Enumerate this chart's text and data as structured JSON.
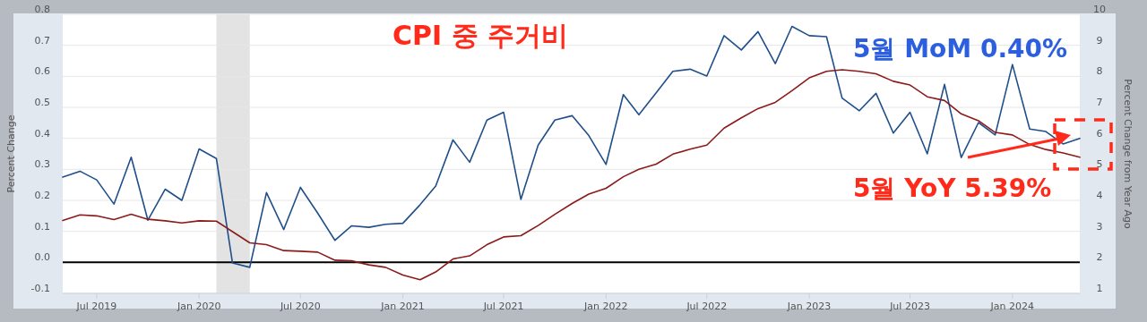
{
  "chart_data": {
    "type": "line",
    "title": "CPI 중 주거비",
    "ylabel": "Percent Change",
    "y2label": "Percent Change from Year Ago",
    "x": [
      "2019-05",
      "2019-06",
      "2019-07",
      "2019-08",
      "2019-09",
      "2019-10",
      "2019-11",
      "2019-12",
      "2020-01",
      "2020-02",
      "2020-03",
      "2020-04",
      "2020-05",
      "2020-06",
      "2020-07",
      "2020-08",
      "2020-09",
      "2020-10",
      "2020-11",
      "2020-12",
      "2021-01",
      "2021-02",
      "2021-03",
      "2021-04",
      "2021-05",
      "2021-06",
      "2021-07",
      "2021-08",
      "2021-09",
      "2021-10",
      "2021-11",
      "2021-12",
      "2022-01",
      "2022-02",
      "2022-03",
      "2022-04",
      "2022-05",
      "2022-06",
      "2022-07",
      "2022-08",
      "2022-09",
      "2022-10",
      "2022-11",
      "2022-12",
      "2023-01",
      "2023-02",
      "2023-03",
      "2023-04",
      "2023-05",
      "2023-06",
      "2023-07",
      "2023-08",
      "2023-09",
      "2023-10",
      "2023-11",
      "2023-12",
      "2024-01",
      "2024-02",
      "2024-03",
      "2024-04",
      "2024-05"
    ],
    "series": [
      {
        "color": "#1f4f8b",
        "values": [
          0.275,
          0.294,
          0.266,
          0.188,
          0.339,
          0.136,
          0.236,
          0.2,
          0.366,
          0.335,
          -0.002,
          -0.016,
          0.225,
          0.106,
          0.242,
          0.159,
          0.071,
          0.118,
          0.113,
          0.123,
          0.126,
          0.186,
          0.246,
          0.395,
          0.323,
          0.459,
          0.484,
          0.203,
          0.378,
          0.459,
          0.473,
          0.409,
          0.316,
          0.541,
          0.476,
          0.547,
          0.616,
          0.623,
          0.601,
          0.731,
          0.685,
          0.744,
          0.641,
          0.761,
          0.731,
          0.728,
          0.53,
          0.489,
          0.545,
          0.417,
          0.484,
          0.35,
          0.574,
          0.338,
          0.451,
          0.411,
          0.638,
          0.43,
          0.422,
          0.382,
          0.4
        ]
      },
      {
        "color": "#8b1a1a",
        "axis": "y2",
        "values": [
          3.35,
          3.53,
          3.5,
          3.38,
          3.55,
          3.39,
          3.34,
          3.27,
          3.34,
          3.33,
          2.99,
          2.63,
          2.57,
          2.38,
          2.36,
          2.33,
          2.07,
          2.05,
          1.92,
          1.84,
          1.59,
          1.44,
          1.69,
          2.11,
          2.21,
          2.57,
          2.82,
          2.86,
          3.19,
          3.55,
          3.9,
          4.2,
          4.39,
          4.76,
          5.0,
          5.17,
          5.49,
          5.65,
          5.78,
          6.33,
          6.66,
          6.96,
          7.16,
          7.54,
          7.95,
          8.16,
          8.21,
          8.16,
          8.08,
          7.84,
          7.72,
          7.34,
          7.22,
          6.79,
          6.57,
          6.19,
          6.11,
          5.8,
          5.64,
          5.53,
          5.39
        ]
      }
    ],
    "xlim": [
      "2019-05",
      "2024-05"
    ],
    "xticks": [
      {
        "value": "2019-07",
        "label": "Jul 2019"
      },
      {
        "value": "2020-01",
        "label": "Jan 2020"
      },
      {
        "value": "2020-07",
        "label": "Jul 2020"
      },
      {
        "value": "2021-01",
        "label": "Jan 2021"
      },
      {
        "value": "2021-07",
        "label": "Jul 2021"
      },
      {
        "value": "2022-01",
        "label": "Jan 2022"
      },
      {
        "value": "2022-07",
        "label": "Jul 2022"
      },
      {
        "value": "2023-01",
        "label": "Jan 2023"
      },
      {
        "value": "2023-07",
        "label": "Jul 2023"
      },
      {
        "value": "2024-01",
        "label": "Jan 2024"
      }
    ],
    "ylim": [
      -0.1,
      0.8
    ],
    "yticks": [
      -0.1,
      {
        "value": 0,
        "label": "0.0"
      },
      0.1,
      0.2,
      0.3,
      0.4,
      0.5,
      0.6,
      0.7,
      0.8
    ],
    "y2lim": [
      1,
      10
    ],
    "y2ticks": [
      1,
      2,
      3,
      4,
      5,
      6,
      7,
      8,
      9,
      10
    ],
    "ref_lines": [
      {
        "axis": "y",
        "value": 0,
        "color": "#000000"
      }
    ],
    "bands": [
      {
        "axis": "x",
        "from": "2020-02",
        "to": "2020-04",
        "color": "#e3e3e3"
      }
    ],
    "annotations": [
      "5월 MoM 0.40%",
      "5월 YoY 5.39%"
    ],
    "grid": "y",
    "marker": "none",
    "line_style": "solid"
  }
}
